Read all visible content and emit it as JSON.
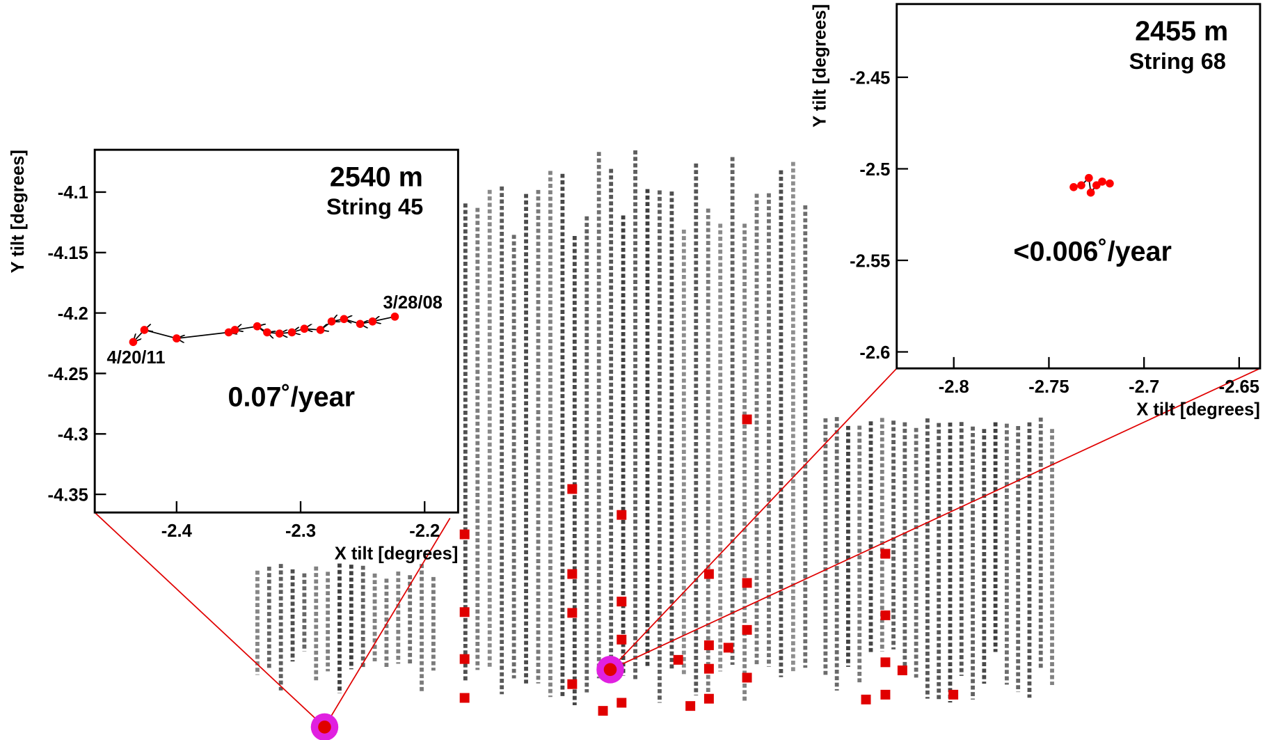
{
  "chart_data": [
    {
      "type": "line",
      "title": "2540 m",
      "subtitle": "String 45",
      "x_label": "X tilt [degrees]",
      "y_label": "Y tilt [degrees]",
      "annotations": [
        "0.07˚/year",
        "3/28/08",
        "4/20/11"
      ],
      "x": [
        -2.224,
        -2.242,
        -2.252,
        -2.265,
        -2.275,
        -2.284,
        -2.297,
        -2.307,
        -2.317,
        -2.327,
        -2.335,
        -2.353,
        -2.358,
        -2.4,
        -2.426,
        -2.435
      ],
      "values": [
        -4.203,
        -4.207,
        -4.209,
        -4.205,
        -4.207,
        -4.214,
        -4.213,
        -4.216,
        -4.217,
        -4.216,
        -4.211,
        -4.214,
        -4.216,
        -4.221,
        -4.214,
        -4.224
      ],
      "color": "#ff0000",
      "arrows": true,
      "xlim": [
        -2.466,
        -2.173
      ],
      "xticks": [
        -2.4,
        -2.3,
        -2.2
      ],
      "ylim": [
        -4.365,
        -4.065
      ],
      "yticks": [
        -4.1,
        -4.15,
        -4.2,
        -4.25,
        -4.3,
        -4.35
      ]
    },
    {
      "type": "line",
      "title": "2455 m",
      "subtitle": "String 68",
      "x_label": "X tilt [degrees]",
      "y_label": "Y tilt [degrees]",
      "annotations": [
        "<0.006˚/year"
      ],
      "x": [
        -2.737,
        -2.733,
        -2.729,
        -2.728,
        -2.725,
        -2.722,
        -2.718
      ],
      "values": [
        -2.51,
        -2.509,
        -2.505,
        -2.513,
        -2.509,
        -2.507,
        -2.508
      ],
      "color": "#ff0000",
      "arrows": false,
      "xlim": [
        -2.83,
        -2.639
      ],
      "xticks": [
        -2.8,
        -2.75,
        -2.7,
        -2.65
      ],
      "ylim": [
        -2.609,
        -2.41
      ],
      "yticks": [
        -2.45,
        -2.5,
        -2.55,
        -2.6
      ]
    }
  ]
}
